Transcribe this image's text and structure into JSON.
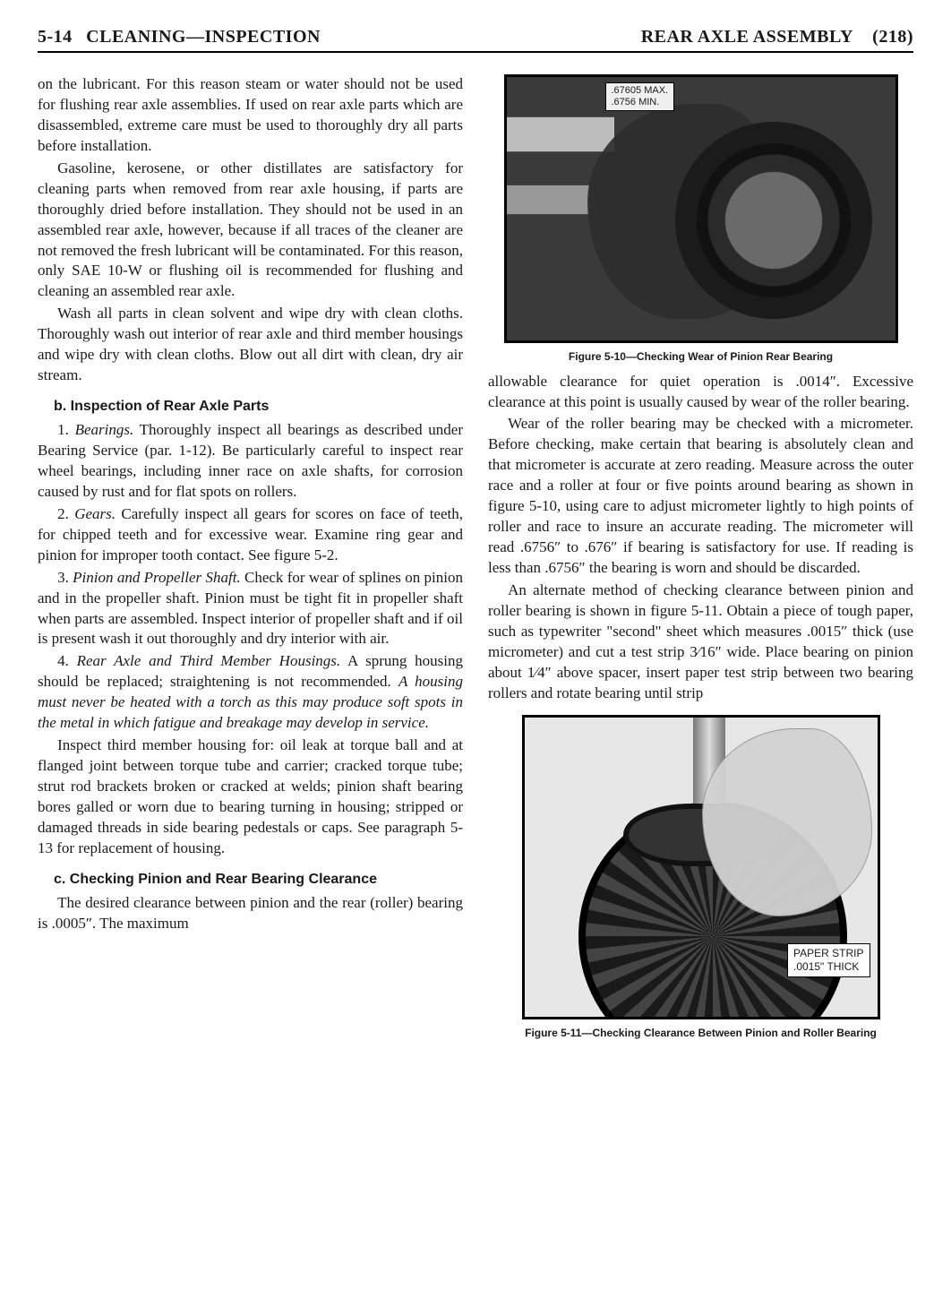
{
  "header": {
    "section_number": "5-14",
    "section_title": "CLEANING—INSPECTION",
    "right_title": "REAR AXLE ASSEMBLY",
    "page_ref": "(218)"
  },
  "left": {
    "p1": "on the lubricant. For this reason steam or water should not be used for flushing rear axle assemblies. If used on rear axle parts which are disassembled, extreme care must be used to thoroughly dry all parts before installation.",
    "p2": "Gasoline, kerosene, or other distillates are satisfactory for cleaning parts when removed from rear axle housing, if parts are thoroughly dried before installation. They should not be used in an assembled rear axle, however, because if all traces of the cleaner are not removed the fresh lubricant will be contaminated. For this reason, only SAE 10-W or flushing oil is recommended for flushing and cleaning an assembled rear axle.",
    "p3": "Wash all parts in clean solvent and wipe dry with clean cloths. Thoroughly wash out interior of rear axle and third member housings and wipe dry with clean cloths. Blow out all dirt with clean, dry air stream.",
    "sub_b": "b.  Inspection of Rear Axle Parts",
    "b1_lead": "1. ",
    "b1_em": "Bearings.",
    "b1_tail": " Thoroughly inspect all bearings as described under Bearing Service (par. 1-12). Be particularly careful to inspect rear wheel bearings, including inner race on axle shafts, for corrosion caused by rust and for flat spots on rollers.",
    "b2_lead": "2. ",
    "b2_em": "Gears.",
    "b2_tail": " Carefully inspect all gears for scores on face of teeth, for chipped teeth and for excessive wear. Examine ring gear and pinion for improper tooth contact. See figure 5-2.",
    "b3_lead": "3. ",
    "b3_em": "Pinion and Propeller Shaft.",
    "b3_tail": " Check for wear of splines on pinion and in the propeller shaft. Pinion must be tight fit in propeller shaft when parts are assembled. Inspect interior of propeller shaft and if oil is present wash it out thoroughly and dry interior with air.",
    "b4_lead": "4. ",
    "b4_em": "Rear Axle and Third Member Housings.",
    "b4_tail": " A sprung housing should be replaced; straightening is not recommended. ",
    "b4_em2": "A housing must never be heated with a torch as this may produce soft spots in the metal in which fatigue and breakage may develop in service.",
    "p_inspect": "Inspect third member housing for: oil leak at torque ball and at flanged joint between torque tube and carrier; cracked torque tube; strut rod brackets broken or cracked at welds; pinion shaft bearing bores galled or worn due to bearing turning in housing; stripped or damaged threads in side bearing pedestals or caps. See paragraph 5-13 for replacement of housing.",
    "sub_c": "c.  Checking Pinion and Rear Bearing Clearance",
    "c1": "The desired clearance between pinion and the rear (roller) bearing is .0005″. The maximum"
  },
  "right": {
    "fig1_label_l1": ".67605 MAX.",
    "fig1_label_l2": ".6756 MIN.",
    "fig1_caption": "Figure 5-10—Checking Wear of Pinion Rear Bearing",
    "p_allow": "allowable clearance for quiet operation is .0014″. Excessive clearance at this point is usually caused by wear of the roller bearing.",
    "p_wear": "Wear of the roller bearing may be checked with a micrometer. Before checking, make certain that bearing is absolutely clean and that micrometer is accurate at zero reading. Measure across the outer race and a roller at four or five points around bearing as shown in figure 5-10, using care to adjust micrometer lightly to high points of roller and race to insure an accurate reading. The micrometer will read .6756″ to .676″ if bearing is satisfactory for use. If reading is less than .6756″ the bearing is worn and should be discarded.",
    "p_alt": "An alternate method of checking clearance between pinion and roller bearing is shown in figure 5-11. Obtain a piece of tough paper, such as typewriter \"second\" sheet which measures .0015″ thick (use micrometer) and cut a test strip 3⁄16″ wide. Place bearing on pinion about 1⁄4″ above spacer, insert paper test strip between two bearing rollers and rotate bearing until strip",
    "fig2_label_l1": "PAPER STRIP",
    "fig2_label_l2": ".0015\" THICK",
    "fig2_caption": "Figure 5-11—Checking Clearance Between Pinion and Roller Bearing"
  }
}
